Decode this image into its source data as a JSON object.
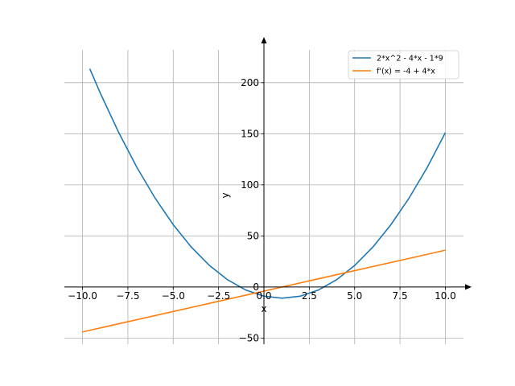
{
  "chart_data": {
    "type": "line",
    "xlabel": "x",
    "ylabel": "y",
    "xlim": [
      -11.0,
      11.0
    ],
    "ylim": [
      -56,
      240
    ],
    "xticks": [
      -10.0,
      -7.5,
      -5.0,
      -2.5,
      0.0,
      2.5,
      5.0,
      7.5,
      10.0
    ],
    "xtick_labels": [
      "−10.0",
      "−7.5",
      "−5.0",
      "−2.5",
      "0.0",
      "2.5",
      "5.0",
      "7.5",
      "10.0"
    ],
    "yticks": [
      -50,
      0,
      50,
      100,
      150,
      200
    ],
    "ytick_labels": [
      "−50",
      "0",
      "50",
      "100",
      "150",
      "200"
    ],
    "grid": true,
    "legend_position": "top-right",
    "series": [
      {
        "name": "2*x^2 - 4*x - 1*9",
        "color": "#1f77b4",
        "x": [
          -9.6,
          -9.0,
          -8.0,
          -7.0,
          -6.0,
          -5.0,
          -4.0,
          -3.0,
          -2.0,
          -1.0,
          0.0,
          1.0,
          2.0,
          3.0,
          4.0,
          5.0,
          6.0,
          7.0,
          8.0,
          9.0,
          10.0
        ],
        "y": [
          213.7,
          189.0,
          151.0,
          117.0,
          87.0,
          61.0,
          39.0,
          21.0,
          7.0,
          -3.0,
          -9.0,
          -11.0,
          -9.0,
          -3.0,
          7.0,
          21.0,
          39.0,
          61.0,
          87.0,
          117.0,
          151.0
        ]
      },
      {
        "name": "f'(x) = -4 + 4*x",
        "color": "#ff7f0e",
        "x": [
          -10.0,
          10.0
        ],
        "y": [
          -44.0,
          36.0
        ]
      }
    ]
  }
}
